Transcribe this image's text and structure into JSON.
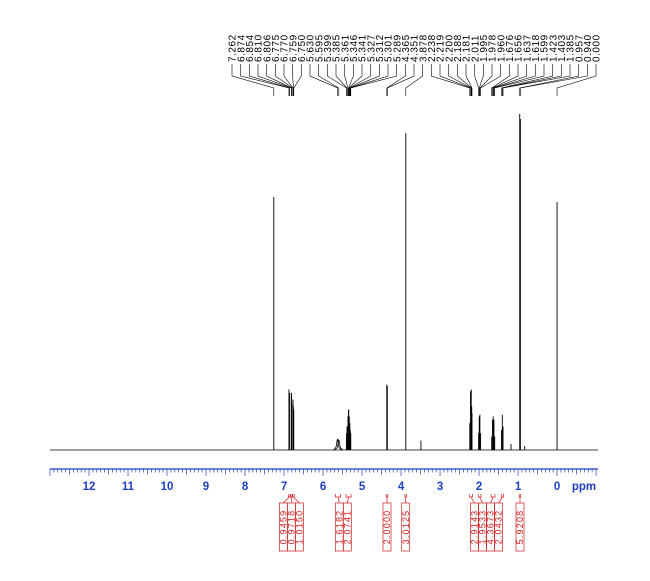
{
  "chart_data": {
    "type": "line",
    "xlabel": "ppm",
    "xlim": [
      13.0,
      -1.05
    ],
    "x_ticks": [
      "12",
      "11",
      "10",
      "9",
      "8",
      "7",
      "6",
      "5",
      "4",
      "3",
      "2",
      "1",
      "0"
    ],
    "grid": false,
    "peak_labels": [
      "7.262",
      "6.874",
      "6.854",
      "6.810",
      "6.806",
      "6.775",
      "6.770",
      "6.759",
      "6.750",
      "5.630",
      "5.595",
      "5.399",
      "5.385",
      "5.361",
      "5.346",
      "5.341",
      "5.327",
      "5.312",
      "5.301",
      "5.289",
      "4.365",
      "4.351",
      "3.878",
      "2.238",
      "2.219",
      "2.200",
      "2.188",
      "2.181",
      "2.011",
      "1.995",
      "1.978",
      "1.960",
      "1.676",
      "1.656",
      "1.637",
      "1.618",
      "1.599",
      "1.423",
      "1.403",
      "1.385",
      "0.957",
      "0.940",
      "0.000"
    ],
    "peaks": [
      {
        "ppm": 7.262,
        "intensity": 0.753
      },
      {
        "ppm": 6.874,
        "intensity": 0.18
      },
      {
        "ppm": 6.854,
        "intensity": 0.17
      },
      {
        "ppm": 6.81,
        "intensity": 0.16
      },
      {
        "ppm": 6.806,
        "intensity": 0.17
      },
      {
        "ppm": 6.775,
        "intensity": 0.14
      },
      {
        "ppm": 6.77,
        "intensity": 0.15
      },
      {
        "ppm": 6.759,
        "intensity": 0.13
      },
      {
        "ppm": 6.75,
        "intensity": 0.12
      },
      {
        "ppm": 5.399,
        "intensity": 0.05
      },
      {
        "ppm": 5.385,
        "intensity": 0.07
      },
      {
        "ppm": 5.361,
        "intensity": 0.1
      },
      {
        "ppm": 5.346,
        "intensity": 0.12
      },
      {
        "ppm": 5.341,
        "intensity": 0.12
      },
      {
        "ppm": 5.327,
        "intensity": 0.1
      },
      {
        "ppm": 5.312,
        "intensity": 0.08
      },
      {
        "ppm": 5.301,
        "intensity": 0.06
      },
      {
        "ppm": 5.289,
        "intensity": 0.05
      },
      {
        "ppm": 4.365,
        "intensity": 0.195
      },
      {
        "ppm": 4.351,
        "intensity": 0.19
      },
      {
        "ppm": 3.878,
        "intensity": 0.943
      },
      {
        "ppm": 3.49,
        "intensity": 0.028
      },
      {
        "ppm": 2.238,
        "intensity": 0.08
      },
      {
        "ppm": 2.219,
        "intensity": 0.175
      },
      {
        "ppm": 2.2,
        "intensity": 0.18
      },
      {
        "ppm": 2.188,
        "intensity": 0.13
      },
      {
        "ppm": 2.181,
        "intensity": 0.11
      },
      {
        "ppm": 2.011,
        "intensity": 0.05
      },
      {
        "ppm": 1.995,
        "intensity": 0.1
      },
      {
        "ppm": 1.978,
        "intensity": 0.105
      },
      {
        "ppm": 1.96,
        "intensity": 0.05
      },
      {
        "ppm": 1.676,
        "intensity": 0.04
      },
      {
        "ppm": 1.656,
        "intensity": 0.09
      },
      {
        "ppm": 1.637,
        "intensity": 0.1
      },
      {
        "ppm": 1.618,
        "intensity": 0.09
      },
      {
        "ppm": 1.599,
        "intensity": 0.04
      },
      {
        "ppm": 1.423,
        "intensity": 0.06
      },
      {
        "ppm": 1.403,
        "intensity": 0.105
      },
      {
        "ppm": 1.385,
        "intensity": 0.07
      },
      {
        "ppm": 1.18,
        "intensity": 0.018
      },
      {
        "ppm": 0.957,
        "intensity": 1.0
      },
      {
        "ppm": 0.94,
        "intensity": 0.985
      },
      {
        "ppm": 0.83,
        "intensity": 0.012
      },
      {
        "ppm": 0.0,
        "intensity": 0.738
      }
    ],
    "broad_peaks": [
      {
        "ppm": 5.63,
        "intensity": 0.032,
        "fwhm": 0.05
      },
      {
        "ppm": 5.595,
        "intensity": 0.03,
        "fwhm": 0.05
      }
    ],
    "integrals": [
      {
        "value": "0.9459",
        "range": [
          6.89,
          6.84
        ]
      },
      {
        "value": "0.9718",
        "range": [
          6.82,
          6.8
        ]
      },
      {
        "value": "1.0150",
        "range": [
          6.78,
          6.74
        ]
      },
      {
        "value": "1.6182",
        "range": [
          5.68,
          5.55
        ]
      },
      {
        "value": "2.0741",
        "range": [
          5.41,
          5.28
        ]
      },
      {
        "value": "2.0000",
        "range": [
          4.38,
          4.34
        ]
      },
      {
        "value": "3.0125",
        "range": [
          3.9,
          3.86
        ]
      },
      {
        "value": "2.9143",
        "range": [
          2.25,
          2.17
        ]
      },
      {
        "value": "1.9533",
        "range": [
          2.02,
          1.95
        ]
      },
      {
        "value": "4.3673",
        "range": [
          1.69,
          1.59
        ]
      },
      {
        "value": "2.0432",
        "range": [
          1.43,
          1.37
        ]
      },
      {
        "value": "5.9208",
        "range": [
          0.97,
          0.93
        ]
      }
    ],
    "colors": {
      "spectrum": "#000000",
      "labels": "#000000",
      "axis": "#1c3fc4",
      "integral": "#d01c1c"
    }
  }
}
